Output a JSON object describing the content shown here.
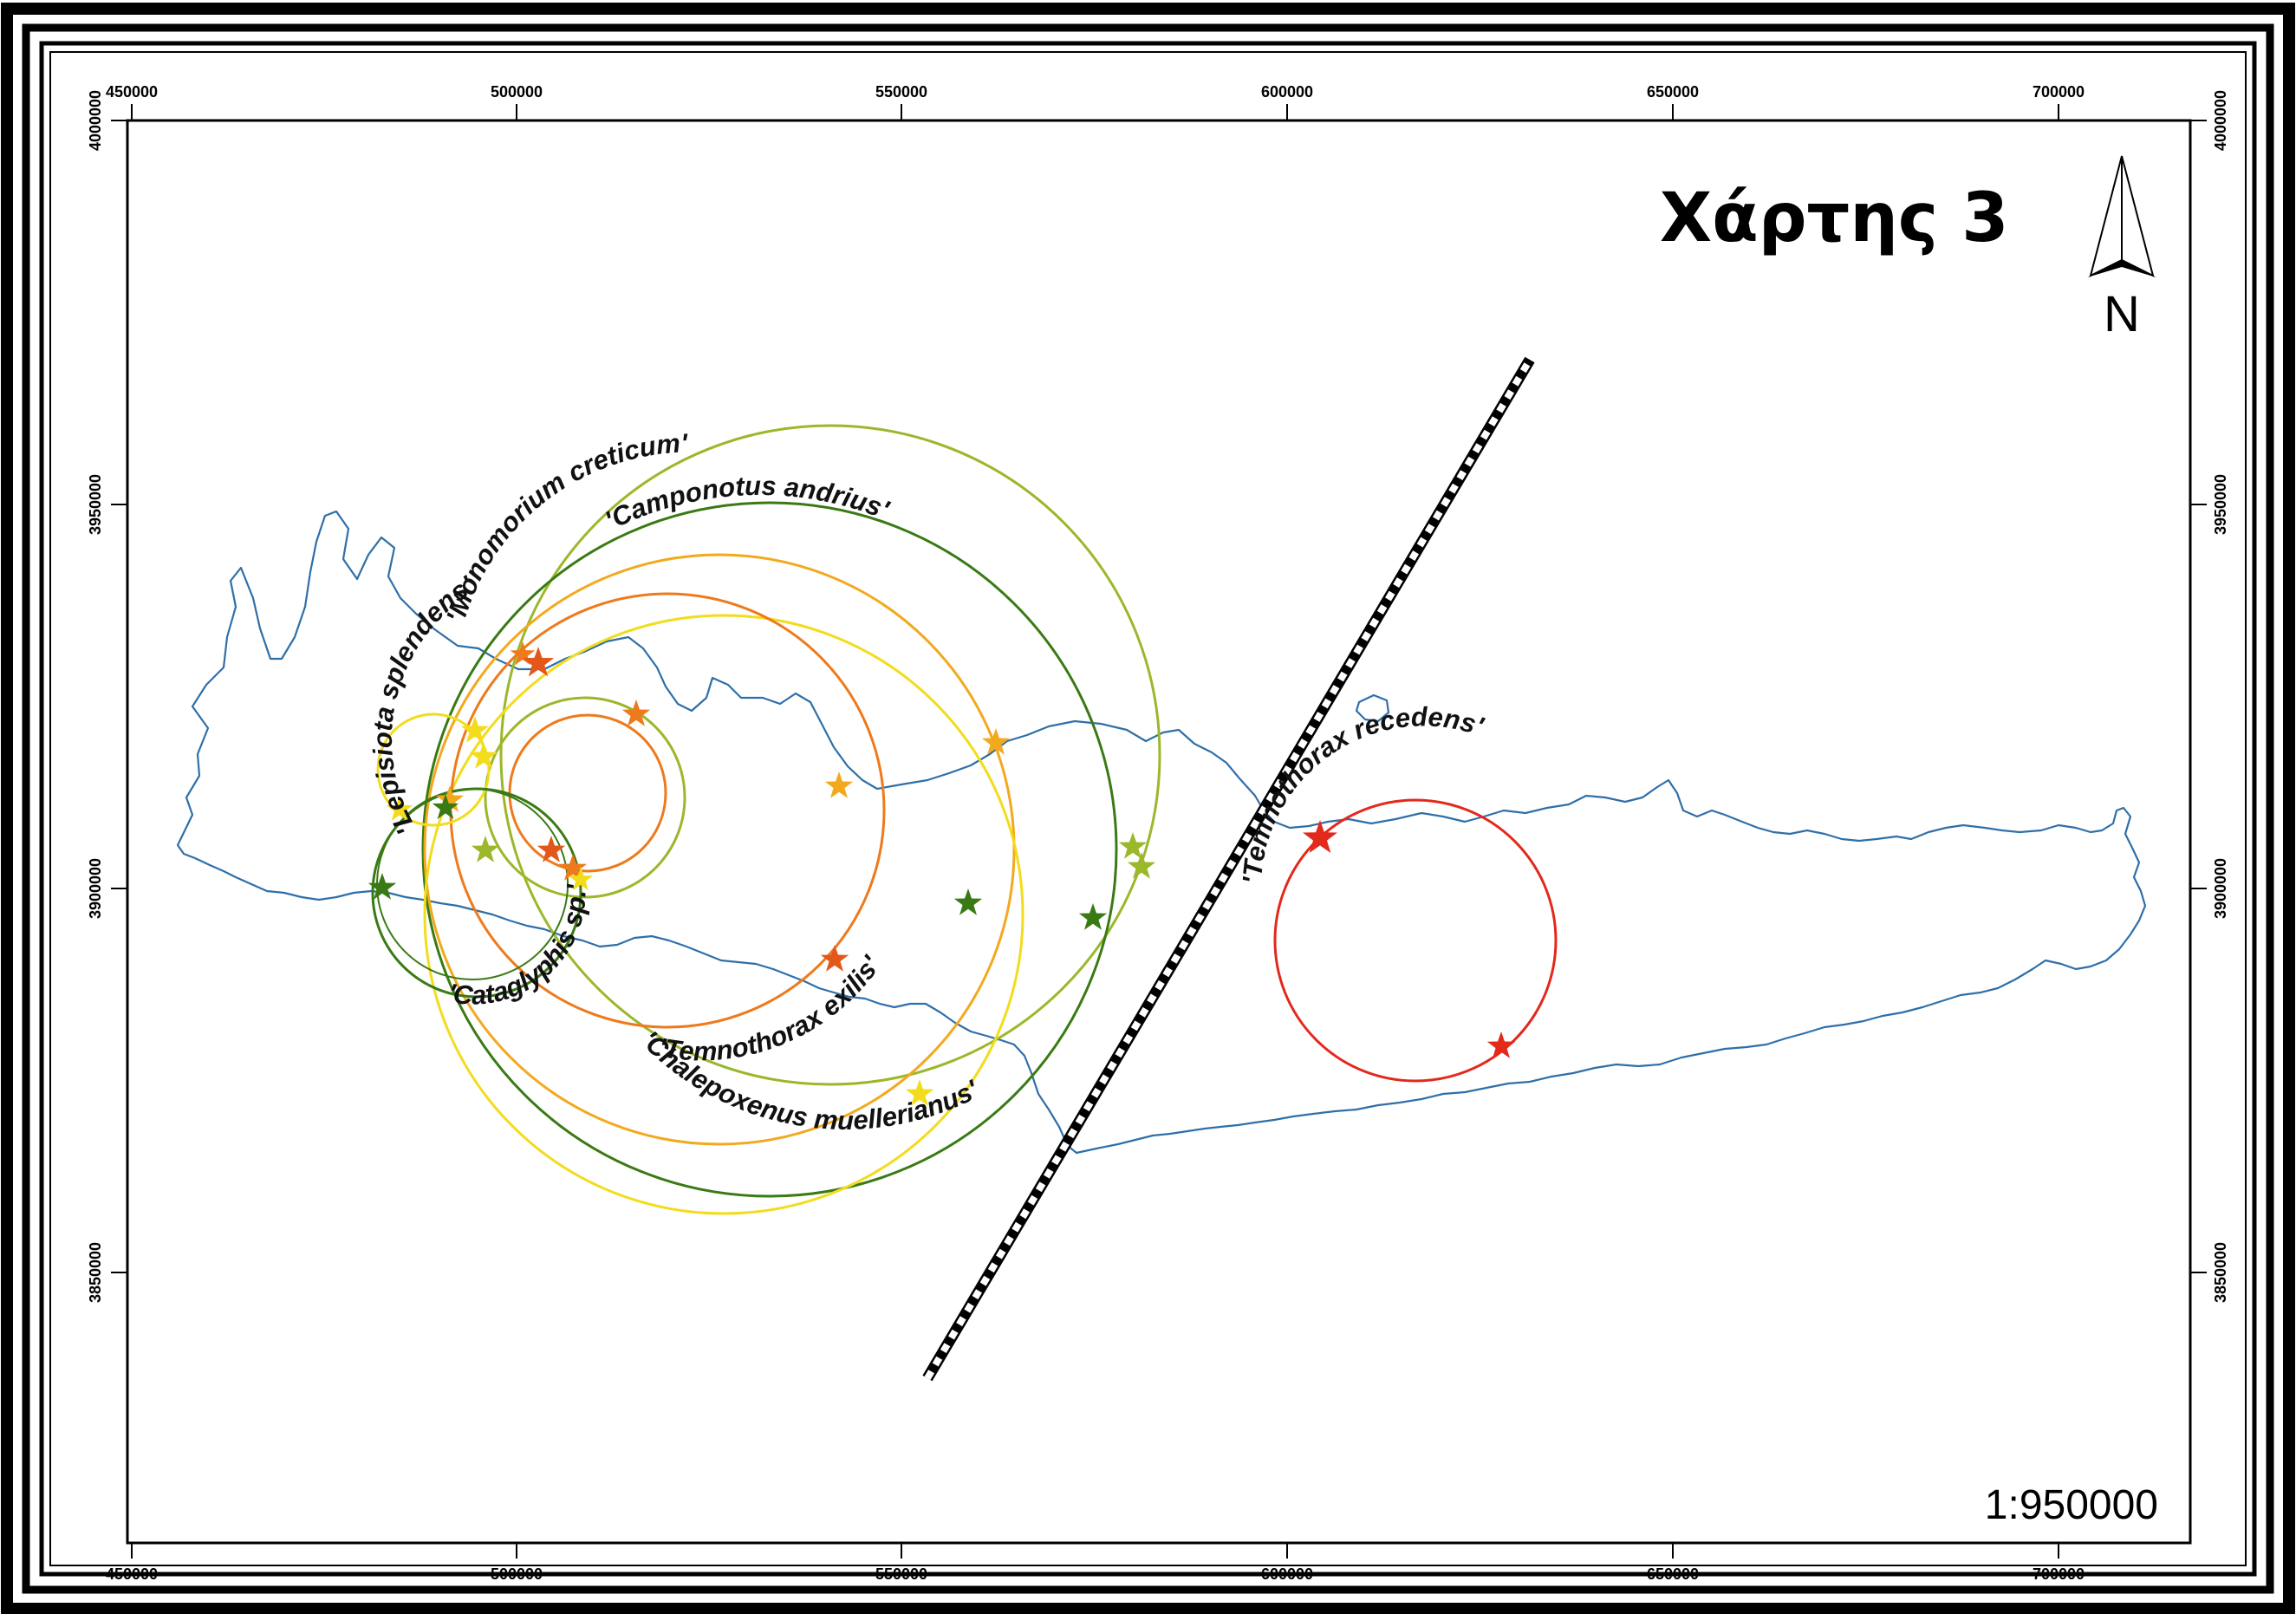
{
  "map": {
    "title": "Χάρτης 3",
    "scale": "1:950000",
    "north_label": "N",
    "x_ticks": [
      "450000",
      "500000",
      "550000",
      "600000",
      "650000",
      "700000"
    ],
    "y_ticks": [
      "4000000",
      "3950000",
      "3900000",
      "3850000"
    ],
    "colors": {
      "coast": "#2f6fa8",
      "border": "#000000",
      "dark_green": "#3a7a14",
      "light_green": "#9ab82a",
      "yellow": "#f2dc1c",
      "gold": "#f2a91e",
      "orange": "#ee7a1c",
      "orange_red": "#e2571a",
      "red": "#e3281c"
    },
    "species": [
      {
        "name": "'Monomorium creticum'",
        "color": "#9ab82a"
      },
      {
        "name": "'Camponotus andrius'",
        "color": "#3a7a14"
      },
      {
        "name": "'Lepisiota splendens'",
        "color": "#f2dc1c"
      },
      {
        "name": "'Cataglyphis sp.'",
        "color": "#3a7a14"
      },
      {
        "name": "'Temnothorax exilis'",
        "color": "#ee7a1c"
      },
      {
        "name": "'Chalepoxenus muellerianus'",
        "color": "#f2a91e"
      },
      {
        "name": "'Temnothorax recedens'",
        "color": "#e3281c"
      }
    ]
  }
}
